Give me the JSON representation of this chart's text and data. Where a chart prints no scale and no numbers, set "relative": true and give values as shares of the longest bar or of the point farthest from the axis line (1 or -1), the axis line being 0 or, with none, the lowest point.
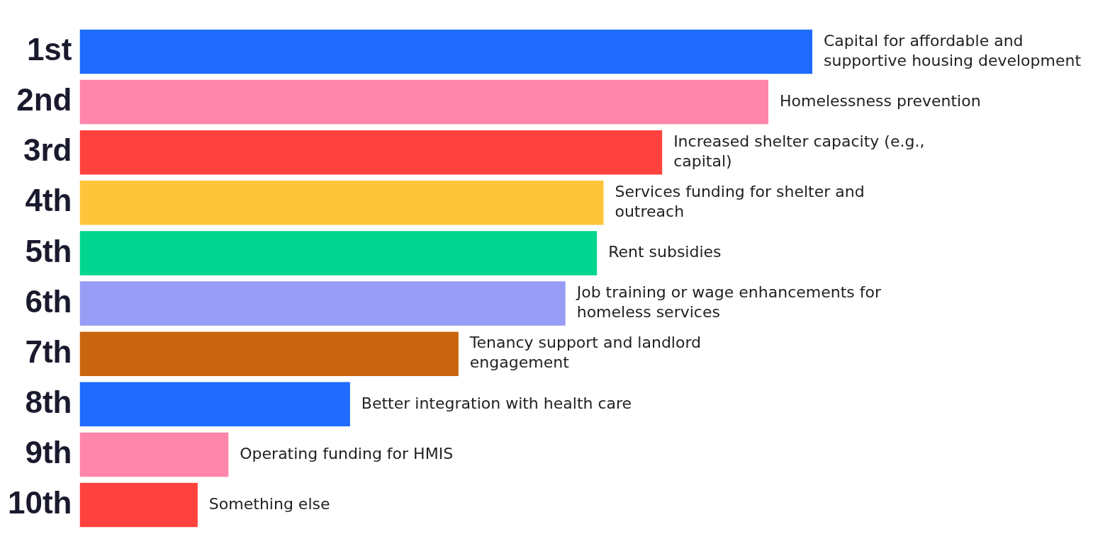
{
  "chart_data": {
    "type": "bar",
    "orientation": "horizontal",
    "relative": true,
    "categories": [
      "1st",
      "2nd",
      "3rd",
      "4th",
      "5th",
      "6th",
      "7th",
      "8th",
      "9th",
      "10th"
    ],
    "values": [
      1,
      0.94,
      0.795,
      0.715,
      0.706,
      0.663,
      0.517,
      0.369,
      0.203,
      0.161
    ],
    "colors": [
      "#1f6bff",
      "#ff85ab",
      "#ff423d",
      "#ffc53a",
      "#00d68f",
      "#979cf5",
      "#c9650e",
      "#1f6bff",
      "#ff85ab",
      "#ff423d"
    ],
    "annotations": [
      {
        "text": "Capital for affordable and supportive housing development",
        "x": 1,
        "y": "1st"
      },
      {
        "text": "Homelessness prevention",
        "x": 0.94,
        "y": "2nd"
      },
      {
        "text": "Increased shelter capacity (e.g., capital)",
        "x": 0.795,
        "y": "3rd"
      },
      {
        "text": "Services funding for shelter and outreach",
        "x": 0.715,
        "y": "4th"
      },
      {
        "text": "Rent subsidies",
        "x": 0.706,
        "y": "5th"
      },
      {
        "text": "Job training or wage enhancements for homeless services",
        "x": 0.663,
        "y": "6th"
      },
      {
        "text": "Tenancy support and landlord engagement",
        "x": 0.517,
        "y": "7th"
      },
      {
        "text": "Better integration with health care",
        "x": 0.369,
        "y": "8th"
      },
      {
        "text": "Operating funding for HMIS",
        "x": 0.203,
        "y": "9th"
      },
      {
        "text": "Something else",
        "x": 0.161,
        "y": "10th"
      }
    ]
  }
}
